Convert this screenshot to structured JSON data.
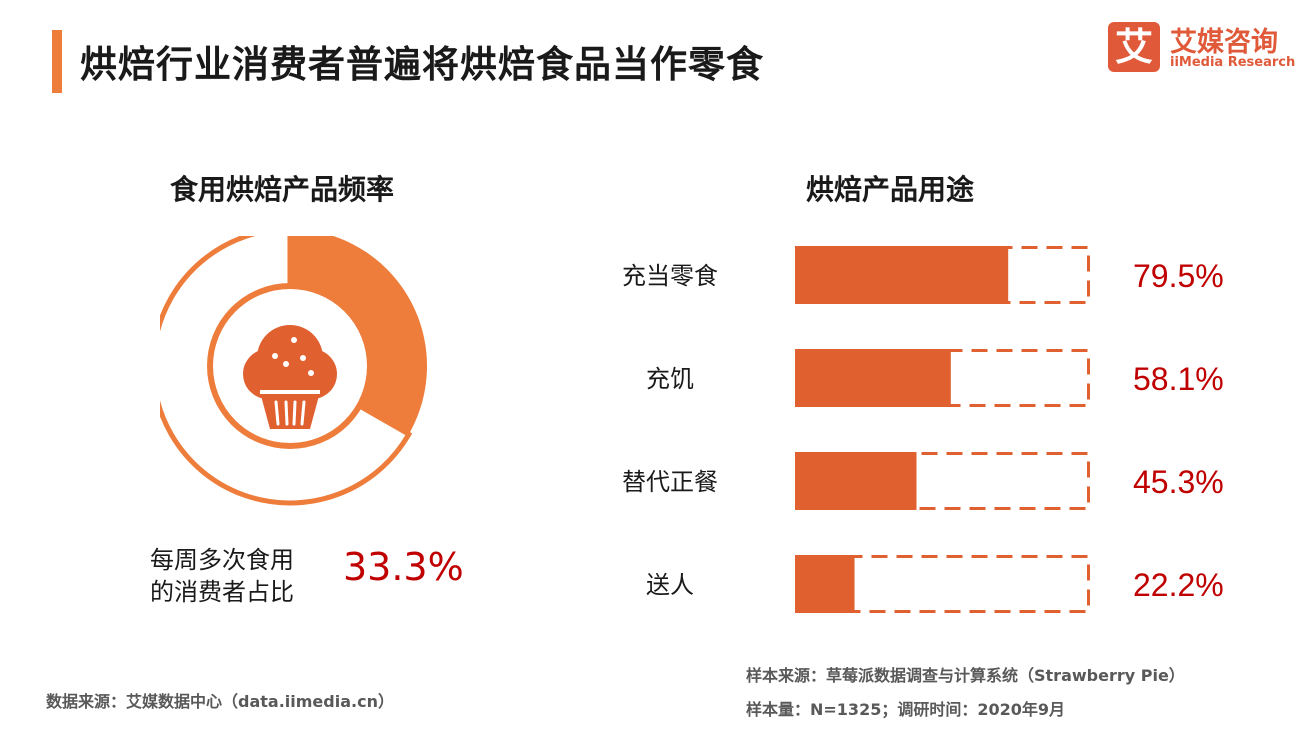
{
  "header": {
    "title": "烘焙行业消费者普遍将烘焙食品当作零食"
  },
  "logo": {
    "glyph": "艾",
    "name_cn": "艾媒咨询",
    "name_en": "iiMedia Research"
  },
  "colors": {
    "accent": "#EE7D3B",
    "bar": "#E06030",
    "value_red": "#C00000",
    "logo": "#E05A3A"
  },
  "chart_data": [
    {
      "type": "pie",
      "title": "食用烘焙产品频率",
      "slices": [
        {
          "label": "每周多次食用的消费者占比",
          "value": 33.3
        },
        {
          "label": "",
          "value": 66.7
        }
      ],
      "value_label": "33.3%",
      "caption_line1": "每周多次食用",
      "caption_line2": "的消费者占比"
    },
    {
      "type": "bar",
      "title": "烘焙产品用途",
      "orientation": "horizontal",
      "categories": [
        "充当零食",
        "充饥",
        "替代正餐",
        "送人"
      ],
      "values": [
        79.5,
        58.1,
        45.3,
        22.2
      ],
      "value_labels": [
        "79.5%",
        "58.1%",
        "45.3%",
        "22.2%"
      ],
      "xlim": [
        0,
        110
      ]
    }
  ],
  "footer": {
    "source_left": "数据来源：艾媒数据中心（data.iimedia.cn）",
    "sample_source": "样本来源：草莓派数据调查与计算系统（Strawberry Pie）",
    "sample_size": "样本量：N=1325；调研时间：2020年9月"
  }
}
